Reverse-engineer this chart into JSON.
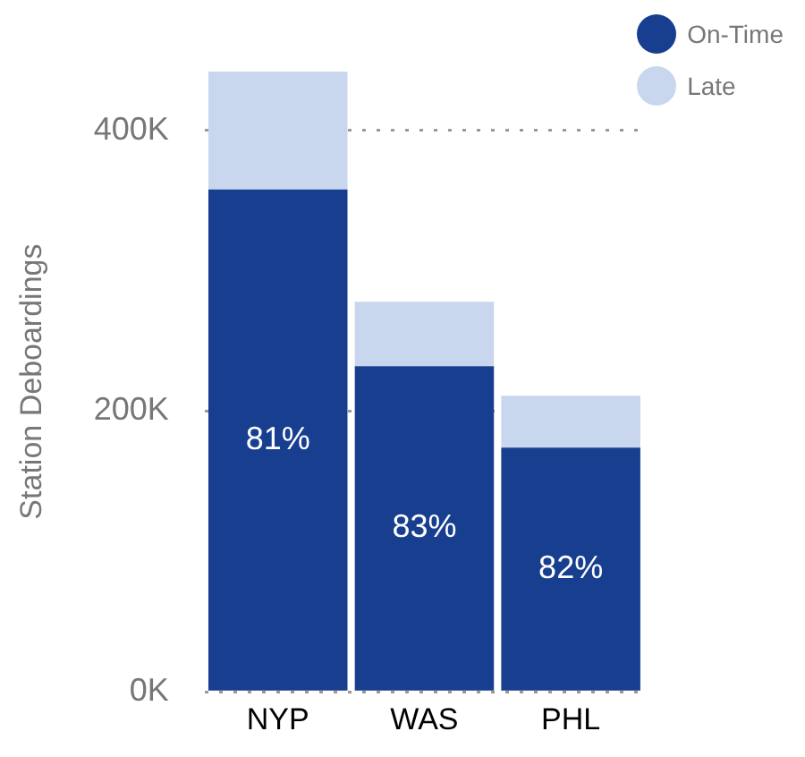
{
  "chart_data": {
    "type": "bar",
    "stacked": true,
    "ylabel": "Station Deboardings",
    "categories": [
      "NYP",
      "WAS",
      "PHL"
    ],
    "series": [
      {
        "name": "On-Time",
        "color": "#183f8f",
        "values": [
          358000,
          232000,
          174000
        ]
      },
      {
        "name": "Late",
        "color": "#c8d6ee",
        "values": [
          84000,
          46000,
          37000
        ]
      }
    ],
    "annotations": [
      "81%",
      "83%",
      "82%"
    ],
    "ylim": [
      0,
      442000
    ],
    "yticks": [
      {
        "value": 0,
        "label": "0K"
      },
      {
        "value": 200000,
        "label": "200K"
      },
      {
        "value": 400000,
        "label": "400K"
      }
    ],
    "grid": "y",
    "legend": "top right"
  }
}
